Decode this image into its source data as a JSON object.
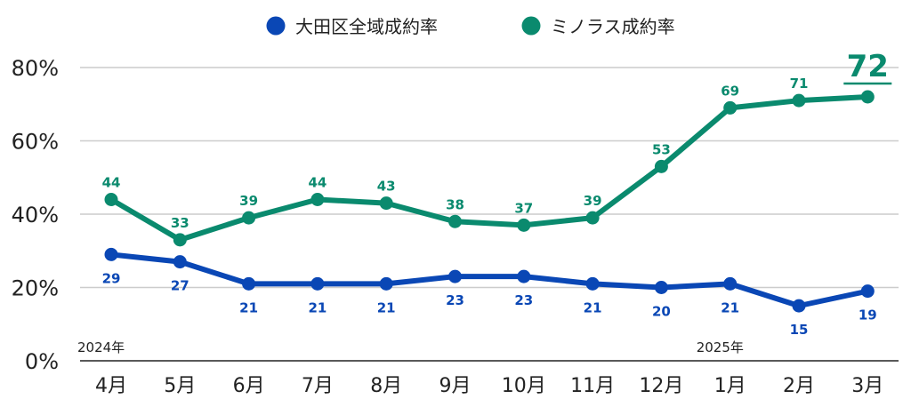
{
  "chart_data": {
    "type": "line",
    "title": "",
    "xlabel": "",
    "ylabel": "",
    "categories": [
      "4月",
      "5月",
      "6月",
      "7月",
      "8月",
      "9月",
      "10月",
      "11月",
      "12月",
      "1月",
      "2月",
      "3月"
    ],
    "year_labels": [
      {
        "text": "2024年",
        "category": "4月"
      },
      {
        "text": "2025年",
        "category": "1月"
      }
    ],
    "series": [
      {
        "name": "大田区全域成約率",
        "color": "#0a47b5",
        "values": [
          29,
          27,
          21,
          21,
          21,
          23,
          23,
          21,
          20,
          21,
          15,
          19
        ],
        "label_position": "below"
      },
      {
        "name": "ミノラス成約率",
        "color": "#0a8a6e",
        "values": [
          44,
          33,
          39,
          44,
          43,
          38,
          37,
          39,
          53,
          69,
          71,
          72
        ],
        "label_position": "above",
        "highlight_last": true
      }
    ],
    "ylim": [
      0,
      80
    ],
    "yticks": [
      0,
      20,
      40,
      60,
      80
    ],
    "ytick_labels": [
      "0%",
      "20%",
      "40%",
      "60%",
      "80%"
    ],
    "grid": true,
    "legend_position": "top-center",
    "axis_color": "#222222",
    "grid_color": "#cccccc"
  }
}
